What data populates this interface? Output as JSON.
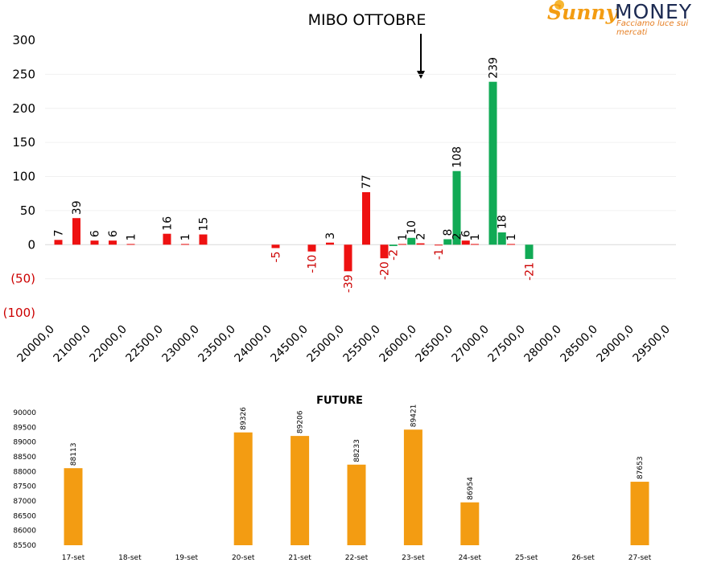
{
  "logo": {
    "word1": "Sunny",
    "word2": "MONEY",
    "tagline": "Facciamo luce sui mercati"
  },
  "chart_data": [
    {
      "type": "bar",
      "title": "MIBO OTTOBRE",
      "ylim": [
        -100,
        300
      ],
      "yticks": [
        {
          "value": 300,
          "label": "300"
        },
        {
          "value": 250,
          "label": "250"
        },
        {
          "value": 200,
          "label": "200"
        },
        {
          "value": 150,
          "label": "150"
        },
        {
          "value": 100,
          "label": "100"
        },
        {
          "value": 50,
          "label": "50"
        },
        {
          "value": 0,
          "label": "0"
        },
        {
          "value": -50,
          "label": "(50)"
        },
        {
          "value": -100,
          "label": "(100)"
        }
      ],
      "xticks": [
        "20000,0",
        "21000,0",
        "22000,0",
        "22500,0",
        "23000,0",
        "23500,0",
        "24000,0",
        "24500,0",
        "25000,0",
        "25500,0",
        "26000,0",
        "26500,0",
        "27000,0",
        "27500,0",
        "28000,0",
        "28500,0",
        "29000,0",
        "29500,0"
      ],
      "series": [
        {
          "color": "#ee1111",
          "points": [
            {
              "x": 0.1,
              "value": 7
            },
            {
              "x": 0.6,
              "value": 39
            },
            {
              "x": 1.1,
              "value": 6
            },
            {
              "x": 1.6,
              "value": 6
            },
            {
              "x": 2.1,
              "value": 1
            },
            {
              "x": 3.1,
              "value": 16
            },
            {
              "x": 3.6,
              "value": 1
            },
            {
              "x": 4.1,
              "value": 15
            },
            {
              "x": 6.1,
              "value": -5
            },
            {
              "x": 7.1,
              "value": -10
            },
            {
              "x": 7.6,
              "value": 3
            },
            {
              "x": 8.1,
              "value": -39
            },
            {
              "x": 8.6,
              "value": 77
            },
            {
              "x": 9.1,
              "value": -20
            },
            {
              "x": 9.6,
              "value": 1
            },
            {
              "x": 10.1,
              "value": 2
            },
            {
              "x": 10.6,
              "value": -1
            },
            {
              "x": 11.1,
              "value": 2
            },
            {
              "x": 11.35,
              "value": 6
            },
            {
              "x": 11.6,
              "value": 1
            },
            {
              "x": 12.6,
              "value": 1
            }
          ]
        },
        {
          "color": "#11aa55",
          "points": [
            {
              "x": 9.35,
              "value": -2
            },
            {
              "x": 9.85,
              "value": 10
            },
            {
              "x": 10.85,
              "value": 8
            },
            {
              "x": 11.1,
              "value": 108
            },
            {
              "x": 12.1,
              "value": 239
            },
            {
              "x": 12.35,
              "value": 18
            },
            {
              "x": 13.1,
              "value": -21
            }
          ]
        }
      ],
      "annotation": "arrow pointing down at 26000,0 region"
    },
    {
      "type": "bar",
      "title": "FUTURE",
      "ylim": [
        85500,
        90000
      ],
      "yticks": [
        90000,
        89500,
        89000,
        88500,
        88000,
        87500,
        87000,
        86500,
        86000,
        85500
      ],
      "categories": [
        "17-set",
        "18-set",
        "19-set",
        "20-set",
        "21-set",
        "22-set",
        "23-set",
        "24-set",
        "25-set",
        "26-set",
        "27-set"
      ],
      "values": [
        88113,
        null,
        null,
        89326,
        89206,
        88233,
        89421,
        86954,
        null,
        null,
        87653
      ],
      "color": "#f39c12"
    }
  ]
}
